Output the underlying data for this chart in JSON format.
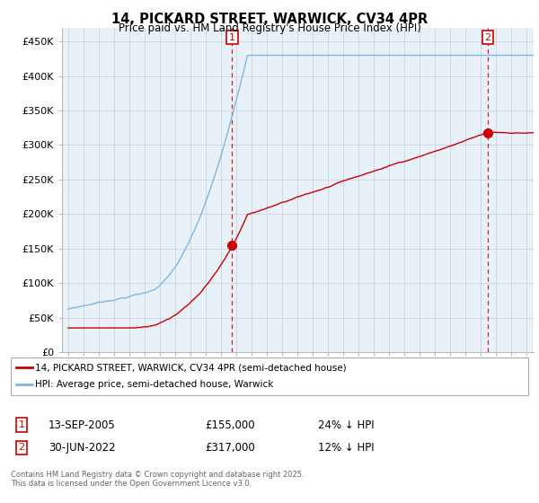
{
  "title": "14, PICKARD STREET, WARWICK, CV34 4PR",
  "subtitle": "Price paid vs. HM Land Registry's House Price Index (HPI)",
  "ylim": [
    0,
    470000
  ],
  "yticks": [
    0,
    50000,
    100000,
    150000,
    200000,
    250000,
    300000,
    350000,
    400000,
    450000
  ],
  "hpi_color": "#7ab8e8",
  "price_color": "#cc0000",
  "plot_bg_color": "#e8f0f8",
  "background_color": "#ffffff",
  "grid_color": "#c8d4e0",
  "legend_line1": "14, PICKARD STREET, WARWICK, CV34 4PR (semi-detached house)",
  "legend_line2": "HPI: Average price, semi-detached house, Warwick",
  "footnote1": "Contains HM Land Registry data © Crown copyright and database right 2025.",
  "footnote2": "This data is licensed under the Open Government Licence v3.0.",
  "annotation1_date": "13-SEP-2005",
  "annotation1_price": "£155,000",
  "annotation1_hpi": "24% ↓ HPI",
  "annotation2_date": "30-JUN-2022",
  "annotation2_price": "£317,000",
  "annotation2_hpi": "12% ↓ HPI",
  "sale1_year": 2005.71,
  "sale1_price": 155000,
  "sale2_year": 2022.5,
  "sale2_price": 317000,
  "start_year": 1995,
  "end_year": 2025.5
}
